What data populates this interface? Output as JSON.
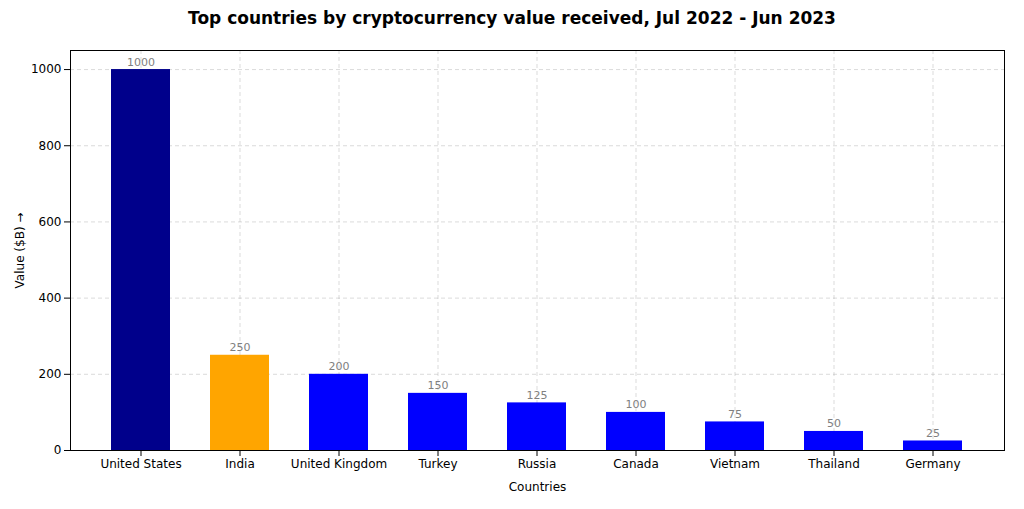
{
  "chart_data": {
    "type": "bar",
    "title": "Top countries by cryptocurrency value received, Jul 2022 - Jun 2023",
    "xlabel": "Countries",
    "ylabel": "Value ($B)",
    "categories": [
      "United States",
      "India",
      "United Kingdom",
      "Turkey",
      "Russia",
      "Canada",
      "Vietnam",
      "Thailand",
      "Germany"
    ],
    "values": [
      1000,
      250,
      200,
      150,
      125,
      100,
      75,
      50,
      25
    ],
    "colors": [
      "#00008B",
      "#FFA500",
      "#0000FF",
      "#0000FF",
      "#0000FF",
      "#0000FF",
      "#0000FF",
      "#0000FF",
      "#0000FF"
    ],
    "ylim": [
      0,
      1050
    ],
    "yticks": [
      0,
      200,
      400,
      600,
      800,
      1000
    ],
    "grid": true,
    "data_labels": true
  }
}
